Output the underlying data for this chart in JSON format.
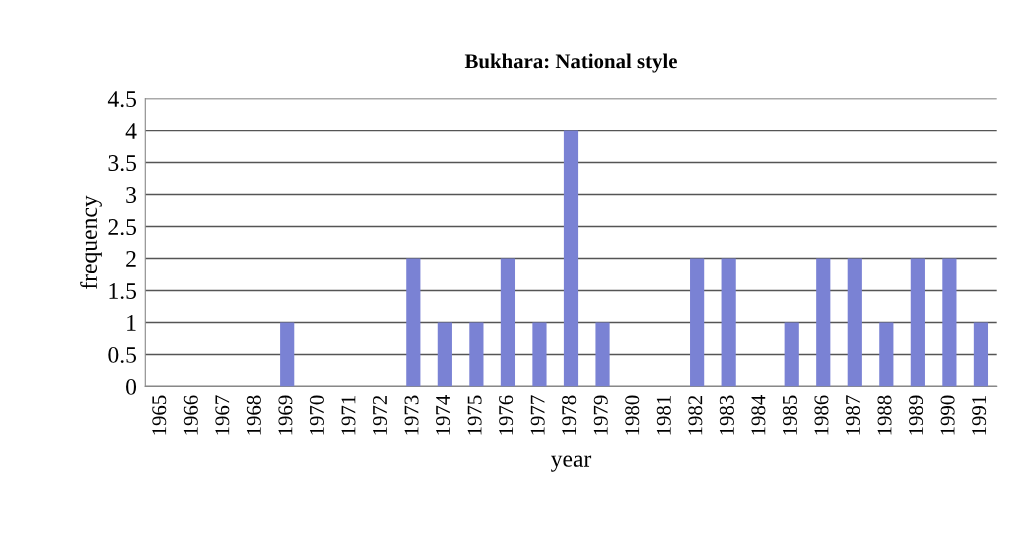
{
  "chart_data": {
    "type": "bar",
    "title": "Bukhara: National style",
    "xlabel": "year",
    "ylabel": "frequency",
    "categories": [
      "1965",
      "1966",
      "1967",
      "1968",
      "1969",
      "1970",
      "1971",
      "1972",
      "1973",
      "1974",
      "1975",
      "1976",
      "1977",
      "1978",
      "1979",
      "1980",
      "1981",
      "1982",
      "1983",
      "1984",
      "1985",
      "1986",
      "1987",
      "1988",
      "1989",
      "1990",
      "1991"
    ],
    "values": [
      0,
      0,
      0,
      0,
      1,
      0,
      0,
      0,
      2,
      1,
      1,
      2,
      1,
      4,
      1,
      0,
      0,
      2,
      2,
      0,
      1,
      2,
      2,
      1,
      2,
      2,
      1
    ],
    "color": "#7a82d4",
    "ylim": [
      0,
      4.5
    ],
    "yticks": [
      0,
      0.5,
      1,
      1.5,
      2,
      2.5,
      3,
      3.5,
      4,
      4.5
    ],
    "grid": "y"
  }
}
